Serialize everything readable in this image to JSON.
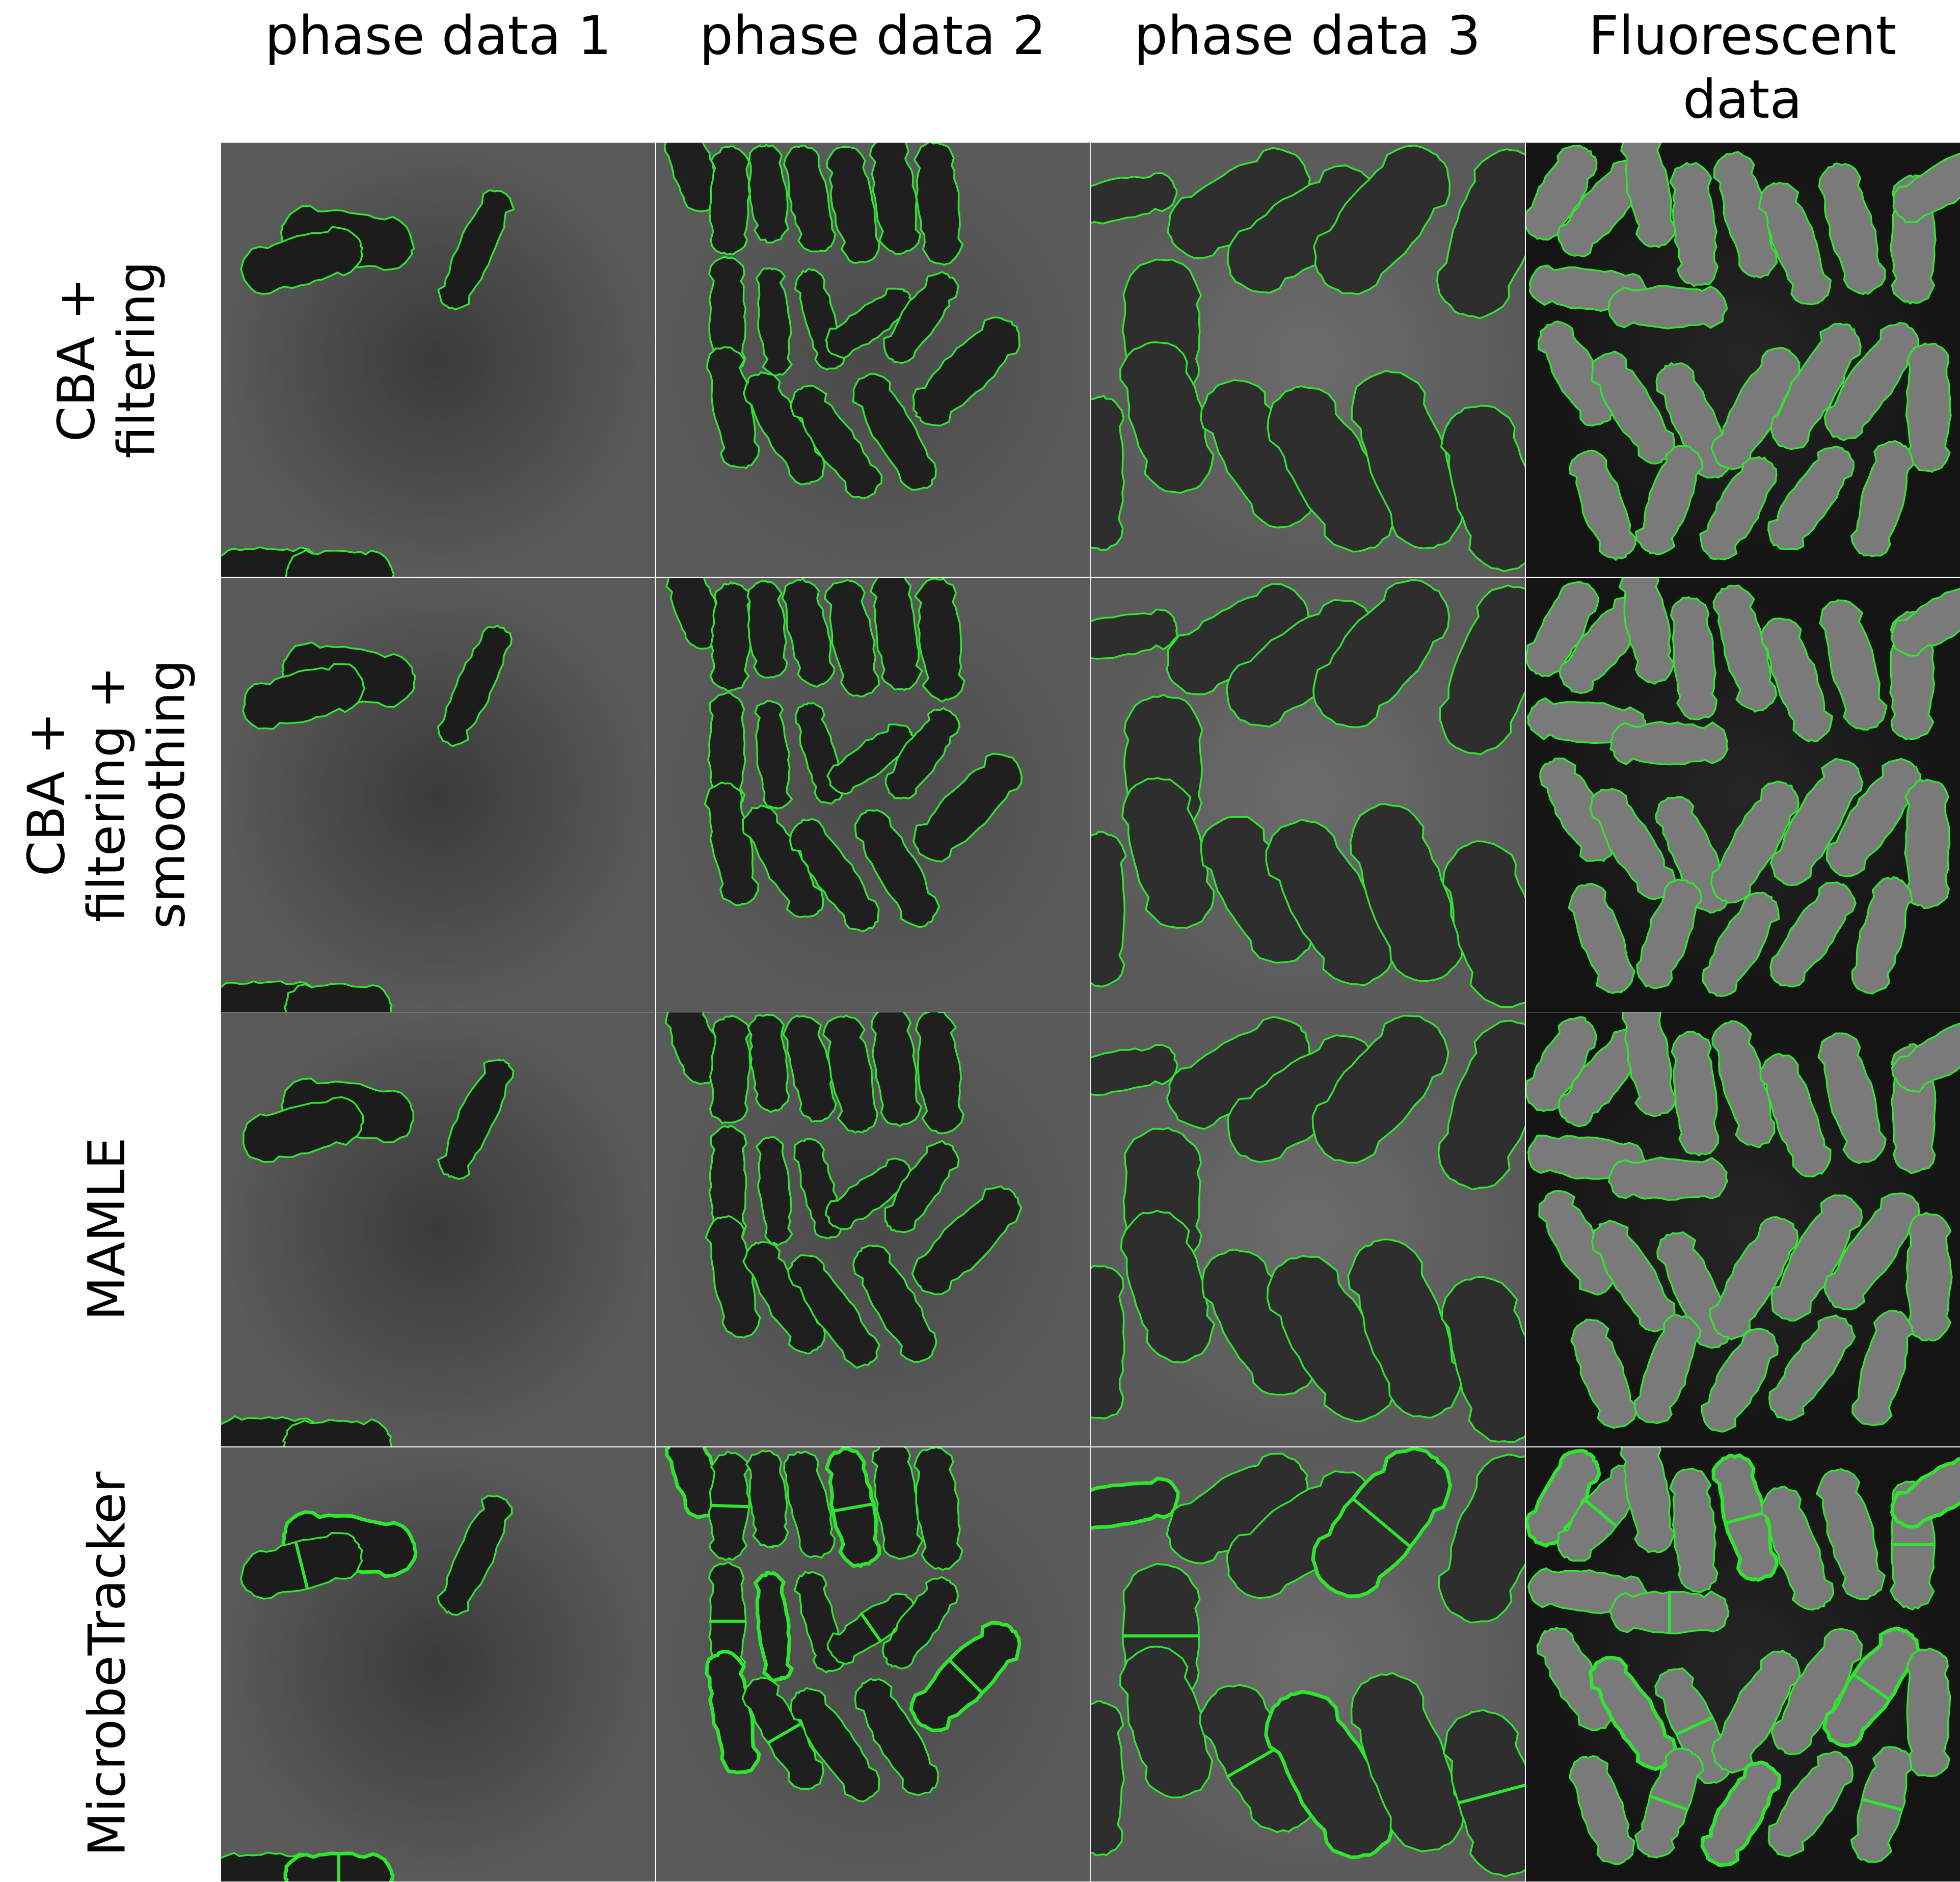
{
  "columns": [
    {
      "label": "phase data 1",
      "modality": "phase",
      "bg": "#3a3a3a",
      "cell": "#1c1c1c"
    },
    {
      "label": "phase data 2",
      "modality": "phase",
      "bg": "#4a4a4a",
      "cell": "#1f1f1f"
    },
    {
      "label": "phase data 3",
      "modality": "phase",
      "bg": "#6c6c6c",
      "cell": "#2e2e2e"
    },
    {
      "label": "Fluorescent\ndata",
      "modality": "fluorescent",
      "bg": "#262626",
      "cell": "#7a7a7a"
    }
  ],
  "rows": [
    {
      "label": "CBA +\nfiltering"
    },
    {
      "label": "CBA +\nfiltering +\nsmoothing"
    },
    {
      "label": "MAMLE"
    },
    {
      "label": "MicrobeTracker"
    }
  ],
  "colors": {
    "outline": "#2ee62e",
    "background": "#ffffff"
  }
}
